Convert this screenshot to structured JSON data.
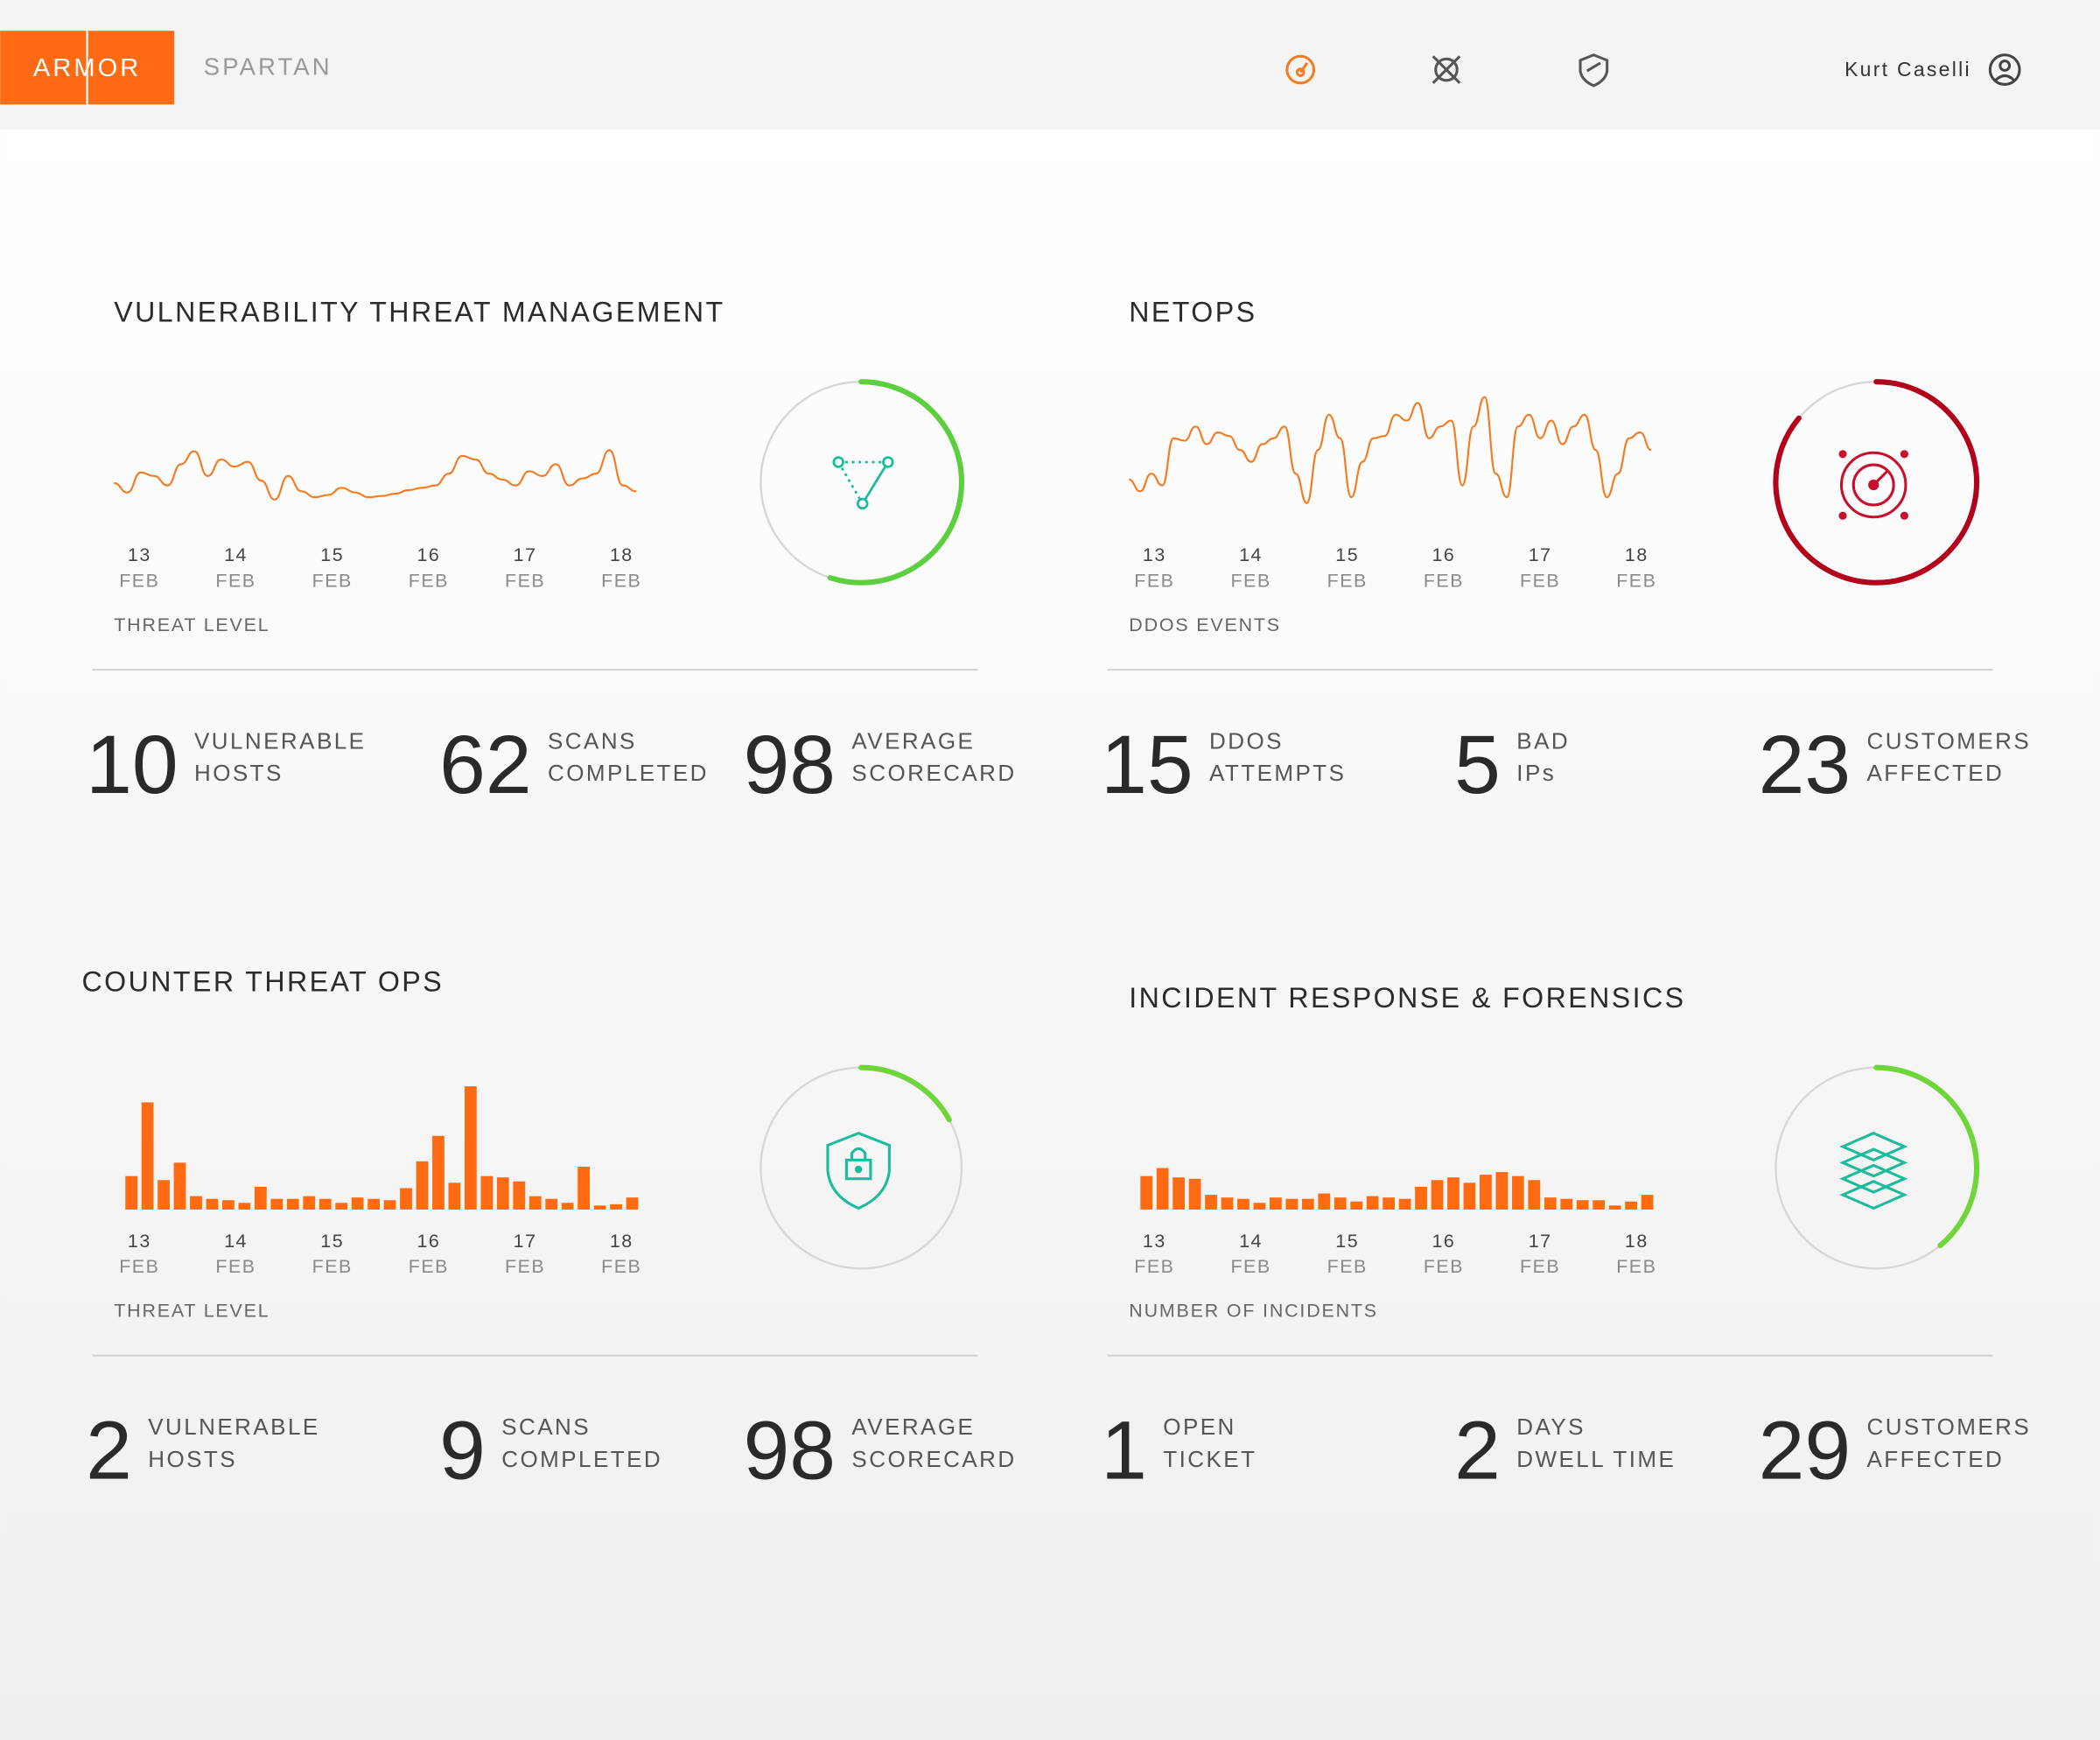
{
  "header": {
    "logo": "ARMOR",
    "product": "SPARTAN",
    "user": "Kurt Caselli"
  },
  "panels": [
    {
      "title": "VULNERABILITY THREAT MANAGEMENT",
      "chart": {
        "type": "line",
        "color": "#f47b20",
        "values": [
          22,
          14,
          31,
          28,
          20,
          38,
          49,
          28,
          42,
          36,
          40,
          24,
          8,
          28,
          15,
          10,
          12,
          18,
          14,
          10,
          11,
          13,
          16,
          18,
          20,
          30,
          45,
          42,
          30,
          25,
          20,
          32,
          28,
          38,
          20,
          26,
          30,
          50,
          20,
          15
        ]
      },
      "dates": [
        {
          "day": "13",
          "month": "FEB"
        },
        {
          "day": "14",
          "month": "FEB"
        },
        {
          "day": "15",
          "month": "FEB"
        },
        {
          "day": "16",
          "month": "FEB"
        },
        {
          "day": "17",
          "month": "FEB"
        },
        {
          "day": "18",
          "month": "FEB"
        }
      ],
      "metric": "THREAT LEVEL",
      "gauge": {
        "value": 55,
        "color": "#5ccf3e"
      },
      "stats": [
        {
          "value": 10,
          "label": [
            "VULNERABLE",
            "HOSTS"
          ]
        },
        {
          "value": 62,
          "label": [
            "SCANS",
            "COMPLETED"
          ]
        },
        {
          "value": 98,
          "label": [
            "AVERAGE",
            "SCORECARD"
          ]
        }
      ]
    },
    {
      "title": "NETOPS",
      "chart": {
        "type": "line",
        "color": "#f47b20",
        "values": [
          25,
          15,
          30,
          20,
          60,
          58,
          70,
          55,
          65,
          62,
          50,
          40,
          55,
          60,
          70,
          30,
          5,
          50,
          80,
          60,
          10,
          40,
          60,
          62,
          80,
          75,
          90,
          60,
          70,
          75,
          20,
          70,
          95,
          30,
          10,
          70,
          80,
          60,
          75,
          55,
          70,
          80,
          50,
          10,
          30,
          60,
          65,
          50
        ]
      },
      "dates": [
        {
          "day": "13",
          "month": "FEB"
        },
        {
          "day": "14",
          "month": "FEB"
        },
        {
          "day": "15",
          "month": "FEB"
        },
        {
          "day": "16",
          "month": "FEB"
        },
        {
          "day": "17",
          "month": "FEB"
        },
        {
          "day": "18",
          "month": "FEB"
        }
      ],
      "metric": "DDOS EVENTS",
      "gauge": {
        "value": 86,
        "color": "#b3001b"
      },
      "stats": [
        {
          "value": 15,
          "label": [
            "DDOS",
            "ATTEMPTS"
          ]
        },
        {
          "value": 5,
          "label": [
            "BAD",
            "IPs"
          ]
        },
        {
          "value": 23,
          "label": [
            "CUSTOMERS",
            "AFFECTED"
          ]
        }
      ]
    },
    {
      "title": "COUNTER THREAT OPS",
      "chart": {
        "type": "bar",
        "color": "#ff6a13",
        "values": [
          25,
          80,
          22,
          35,
          10,
          8,
          7,
          5,
          17,
          8,
          8,
          10,
          8,
          5,
          9,
          8,
          7,
          16,
          36,
          55,
          20,
          92,
          25,
          24,
          21,
          10,
          8,
          5,
          32,
          3,
          4,
          9
        ]
      },
      "dates": [
        {
          "day": "13",
          "month": "FEB"
        },
        {
          "day": "14",
          "month": "FEB"
        },
        {
          "day": "15",
          "month": "FEB"
        },
        {
          "day": "16",
          "month": "FEB"
        },
        {
          "day": "17",
          "month": "FEB"
        },
        {
          "day": "18",
          "month": "FEB"
        }
      ],
      "metric": "THREAT LEVEL",
      "gauge": {
        "value": 17,
        "color": "#6fd63a"
      },
      "stats": [
        {
          "value": 2,
          "label": [
            "VULNERABLE",
            "HOSTS"
          ]
        },
        {
          "value": 9,
          "label": [
            "SCANS",
            "COMPLETED"
          ]
        },
        {
          "value": 98,
          "label": [
            "AVERAGE",
            "SCORECARD"
          ]
        }
      ]
    },
    {
      "title": "INCIDENT RESPONSE & FORENSICS",
      "chart": {
        "type": "bar",
        "color": "#ff6a13",
        "values": [
          25,
          31,
          24,
          23,
          11,
          9,
          8,
          5,
          9,
          8,
          8,
          12,
          9,
          6,
          10,
          9,
          8,
          17,
          22,
          24,
          20,
          26,
          28,
          25,
          22,
          9,
          8,
          7,
          7,
          3,
          6,
          11
        ]
      },
      "dates": [
        {
          "day": "13",
          "month": "FEB"
        },
        {
          "day": "14",
          "month": "FEB"
        },
        {
          "day": "15",
          "month": "FEB"
        },
        {
          "day": "16",
          "month": "FEB"
        },
        {
          "day": "17",
          "month": "FEB"
        },
        {
          "day": "18",
          "month": "FEB"
        }
      ],
      "metric": "NUMBER OF INCIDENTS",
      "gauge": {
        "value": 39,
        "color": "#6fd63a"
      },
      "stats": [
        {
          "value": 1,
          "label": [
            "OPEN",
            "TICKET"
          ]
        },
        {
          "value": 2,
          "label": [
            "DAYS",
            "DWELL TIME"
          ]
        },
        {
          "value": 29,
          "label": [
            "CUSTOMERS",
            "AFFECTED"
          ]
        }
      ]
    }
  ]
}
